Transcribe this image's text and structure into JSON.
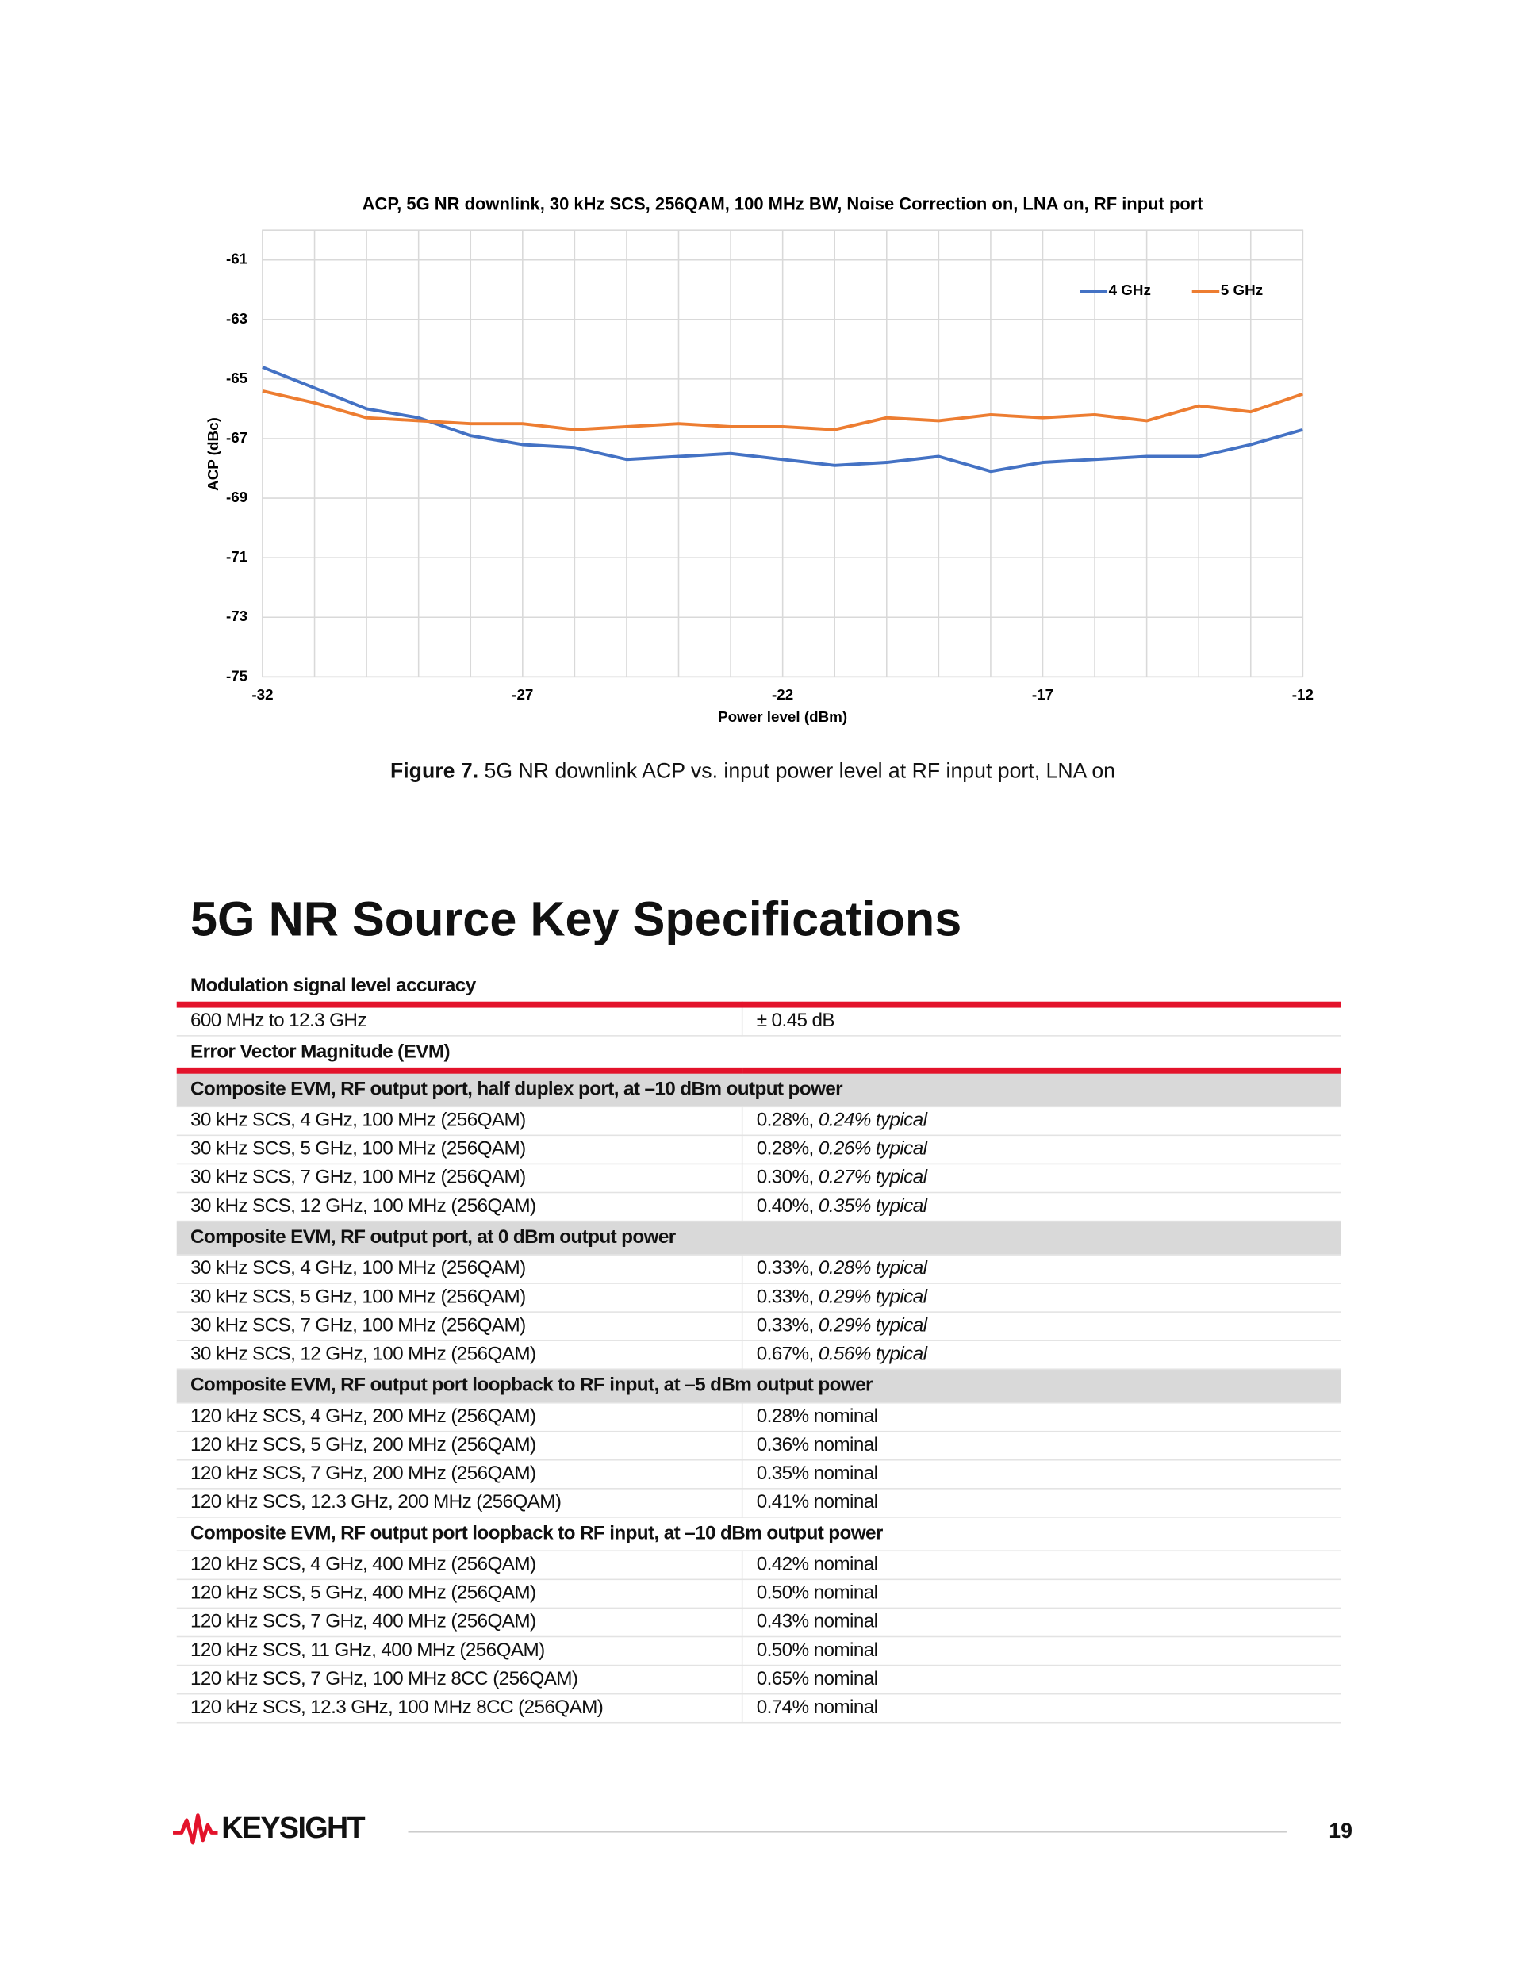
{
  "chart_data": {
    "type": "line",
    "title": "ACP, 5G NR downlink, 30 kHz SCS, 256QAM, 100 MHz BW, Noise Correction on, LNA on, RF input port",
    "x_label": "Power level (dBm)",
    "y_label": "ACP (dBc)",
    "x": [
      -32,
      -31,
      -30,
      -29,
      -28,
      -27,
      -26,
      -25,
      -24,
      -23,
      -22,
      -21,
      -20,
      -19,
      -18,
      -17,
      -16,
      -15,
      -14,
      -13,
      -12
    ],
    "series": [
      {
        "name": "4 GHz",
        "color": "#4472c4",
        "values": [
          -64.6,
          -65.3,
          -66.0,
          -66.3,
          -66.9,
          -67.2,
          -67.3,
          -67.7,
          -67.6,
          -67.5,
          -67.7,
          -67.9,
          -67.8,
          -67.6,
          -68.1,
          -67.8,
          -67.7,
          -67.6,
          -67.6,
          -67.2,
          -66.7
        ]
      },
      {
        "name": "5 GHz",
        "color": "#ed7d31",
        "values": [
          -65.4,
          -65.8,
          -66.3,
          -66.4,
          -66.5,
          -66.5,
          -66.7,
          -66.6,
          -66.5,
          -66.6,
          -66.6,
          -66.7,
          -66.3,
          -66.4,
          -66.2,
          -66.3,
          -66.2,
          -66.4,
          -65.9,
          -66.1,
          -65.5
        ]
      }
    ],
    "xlim": [
      -32,
      -12
    ],
    "xticks": [
      -32,
      -27,
      -22,
      -17,
      -12
    ],
    "ylim": [
      -75,
      -60
    ],
    "yticks": [
      -61,
      -63,
      -65,
      -67,
      -69,
      -71,
      -73,
      -75
    ],
    "grid": true,
    "legend": "upper right"
  },
  "caption": {
    "label": "Figure 7.",
    "text": "5G NR downlink ACP vs. input power level at RF input port, LNA on"
  },
  "heading": "5G NR Source Key Specifications",
  "table": {
    "groups": [
      {
        "title": "Modulation signal level accuracy",
        "rows": [
          {
            "spec": "600 MHz to 12.3 GHz",
            "value": "± 0.45 dB"
          }
        ]
      },
      {
        "title": "Error Vector Magnitude (EVM)",
        "subsections": [
          {
            "title": "Composite EVM, RF output port, half duplex port, at –10 dBm output power",
            "rows": [
              {
                "spec": "30 kHz SCS, 4 GHz, 100 MHz (256QAM)",
                "value": "0.28%,",
                "typical": "0.24% typical"
              },
              {
                "spec": "30 kHz SCS, 5 GHz, 100 MHz (256QAM)",
                "value": "0.28%,",
                "typical": "0.26% typical"
              },
              {
                "spec": "30 kHz SCS, 7 GHz, 100 MHz (256QAM)",
                "value": "0.30%,",
                "typical": "0.27% typical"
              },
              {
                "spec": "30 kHz SCS, 12 GHz, 100 MHz (256QAM)",
                "value": "0.40%,",
                "typical": "0.35% typical"
              }
            ]
          },
          {
            "title": "Composite EVM, RF output port, at 0 dBm output power",
            "rows": [
              {
                "spec": "30 kHz SCS, 4 GHz, 100 MHz (256QAM)",
                "value": "0.33%,",
                "typical": "0.28% typical"
              },
              {
                "spec": "30 kHz SCS, 5 GHz, 100 MHz (256QAM)",
                "value": "0.33%,",
                "typical": "0.29% typical"
              },
              {
                "spec": "30 kHz SCS, 7 GHz, 100 MHz (256QAM)",
                "value": "0.33%,",
                "typical": "0.29% typical"
              },
              {
                "spec": "30 kHz SCS, 12 GHz, 100 MHz (256QAM)",
                "value": "0.67%,",
                "typical": "0.56% typical"
              }
            ]
          },
          {
            "title": "Composite EVM, RF output port loopback to RF input, at –5 dBm output power",
            "rows": [
              {
                "spec": "120 kHz SCS, 4 GHz, 200 MHz (256QAM)",
                "value": "0.28% nominal"
              },
              {
                "spec": "120 kHz SCS, 5 GHz, 200 MHz (256QAM)",
                "value": "0.36% nominal"
              },
              {
                "spec": "120 kHz SCS, 7 GHz, 200 MHz (256QAM)",
                "value": "0.35% nominal"
              },
              {
                "spec": "120 kHz SCS, 12.3 GHz, 200 MHz (256QAM)",
                "value": "0.41% nominal"
              }
            ]
          },
          {
            "title": "Composite EVM, RF output port loopback to RF input, at –10 dBm output power",
            "rows": [
              {
                "spec": "120 kHz SCS, 4 GHz, 400 MHz (256QAM)",
                "value": "0.42% nominal"
              },
              {
                "spec": "120 kHz SCS, 5 GHz, 400 MHz (256QAM)",
                "value": "0.50% nominal"
              },
              {
                "spec": "120 kHz SCS, 7 GHz, 400 MHz (256QAM)",
                "value": "0.43% nominal"
              },
              {
                "spec": "120 kHz SCS, 11 GHz, 400 MHz (256QAM)",
                "value": "0.50% nominal"
              },
              {
                "spec": "120 kHz SCS, 7 GHz, 100 MHz 8CC (256QAM)",
                "value": "0.65% nominal"
              },
              {
                "spec": "120 kHz SCS, 12.3 GHz, 100 MHz 8CC (256QAM)",
                "value": "0.74% nominal"
              }
            ]
          }
        ]
      }
    ]
  },
  "footer": {
    "brand": "KEYSIGHT",
    "page": "19"
  }
}
